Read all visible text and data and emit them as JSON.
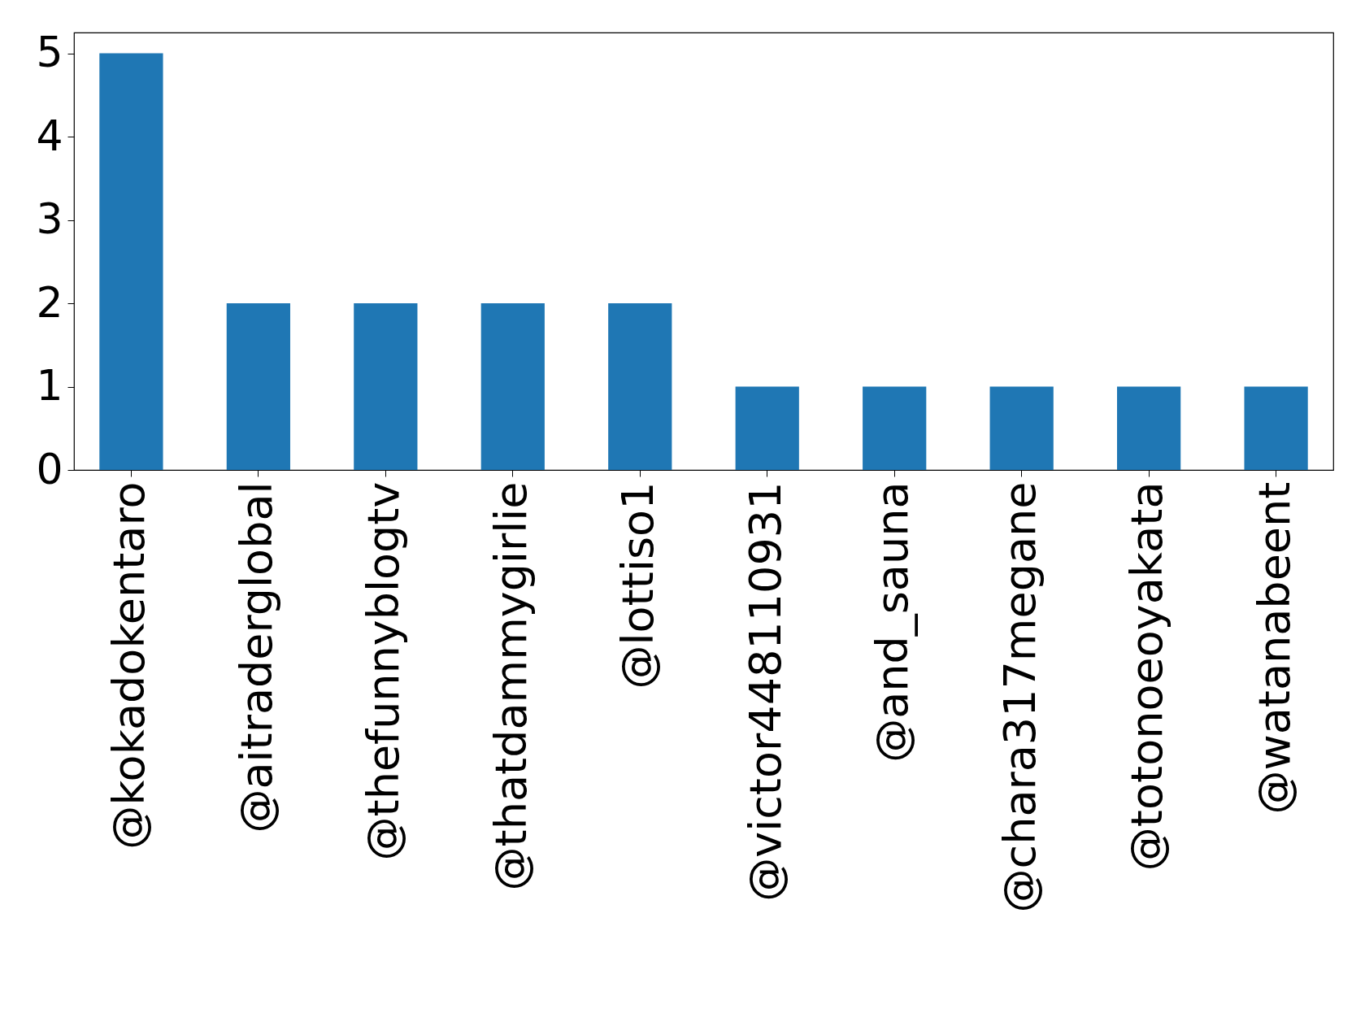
{
  "chart_data": {
    "type": "bar",
    "categories": [
      "@kokadokentaro",
      "@aitraderglobal",
      "@thefunnyblogtv",
      "@thatdammygirlie",
      "@lottiso1",
      "@victor448110931",
      "@and_sauna",
      "@chara317megane",
      "@totonoeoyakata",
      "@watanabeent"
    ],
    "values": [
      5,
      2,
      2,
      2,
      2,
      1,
      1,
      1,
      1,
      1
    ],
    "color": "#1f77b4",
    "ylim": [
      0,
      5.25
    ],
    "yticks": [
      0,
      1,
      2,
      3,
      4,
      5
    ],
    "grid": false
  }
}
